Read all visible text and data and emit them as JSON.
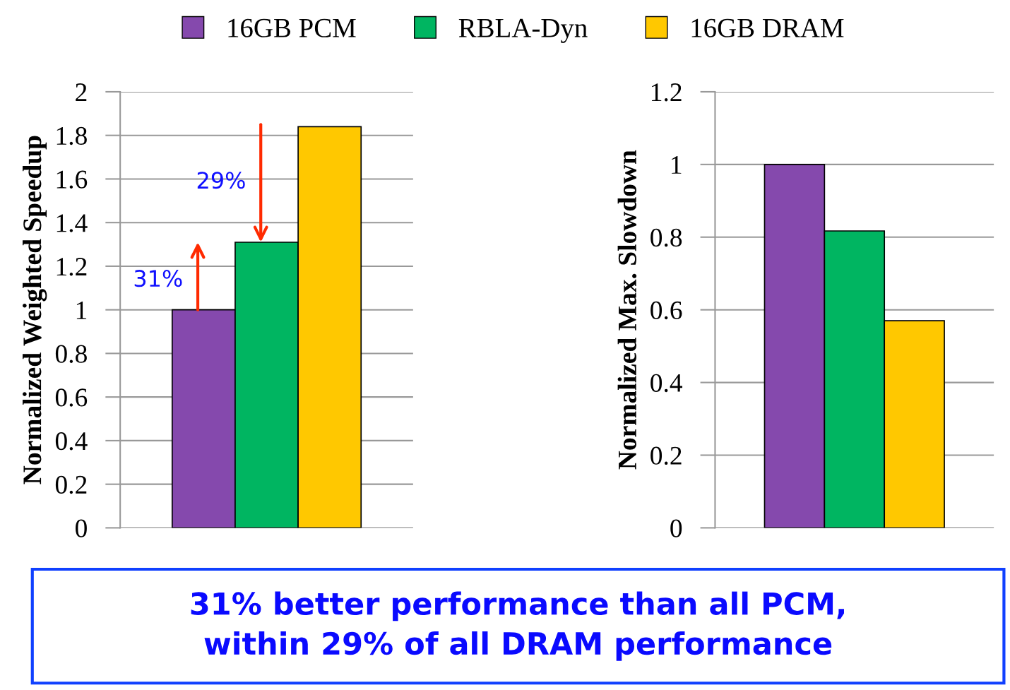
{
  "chart_data": [
    {
      "type": "bar",
      "ylabel": "Normalized Weighted Speedup",
      "categories": [
        null
      ],
      "series": [
        {
          "name": "16GB PCM",
          "color": "#8549ad",
          "values": [
            1.0
          ]
        },
        {
          "name": "RBLA-Dyn",
          "color": "#00b561",
          "values": [
            1.31
          ]
        },
        {
          "name": "16GB DRAM",
          "color": "#ffc800",
          "values": [
            1.84
          ]
        }
      ],
      "ylim": [
        0,
        2
      ],
      "yticks": [
        0,
        0.2,
        0.4,
        0.6,
        0.8,
        1,
        1.2,
        1.4,
        1.6,
        1.8,
        2
      ],
      "grid": "y",
      "legend": "top",
      "annotations": [
        "31%",
        "29%",
        "31% better performance than all PCM,\nwithin 29% of all DRAM performance"
      ]
    },
    {
      "type": "bar",
      "ylabel": "Normalized Max. Slowdown",
      "categories": [
        null
      ],
      "series": [
        {
          "color": "#8549ad",
          "values": [
            1.0
          ]
        },
        {
          "color": "#00b561",
          "values": [
            0.817
          ]
        },
        {
          "color": "#ffc800",
          "values": [
            0.57
          ]
        }
      ],
      "ylim": [
        0,
        1.2
      ],
      "yticks": [
        0,
        0.2,
        0.4,
        0.6,
        0.8,
        1,
        1.2
      ],
      "grid": "y"
    }
  ]
}
